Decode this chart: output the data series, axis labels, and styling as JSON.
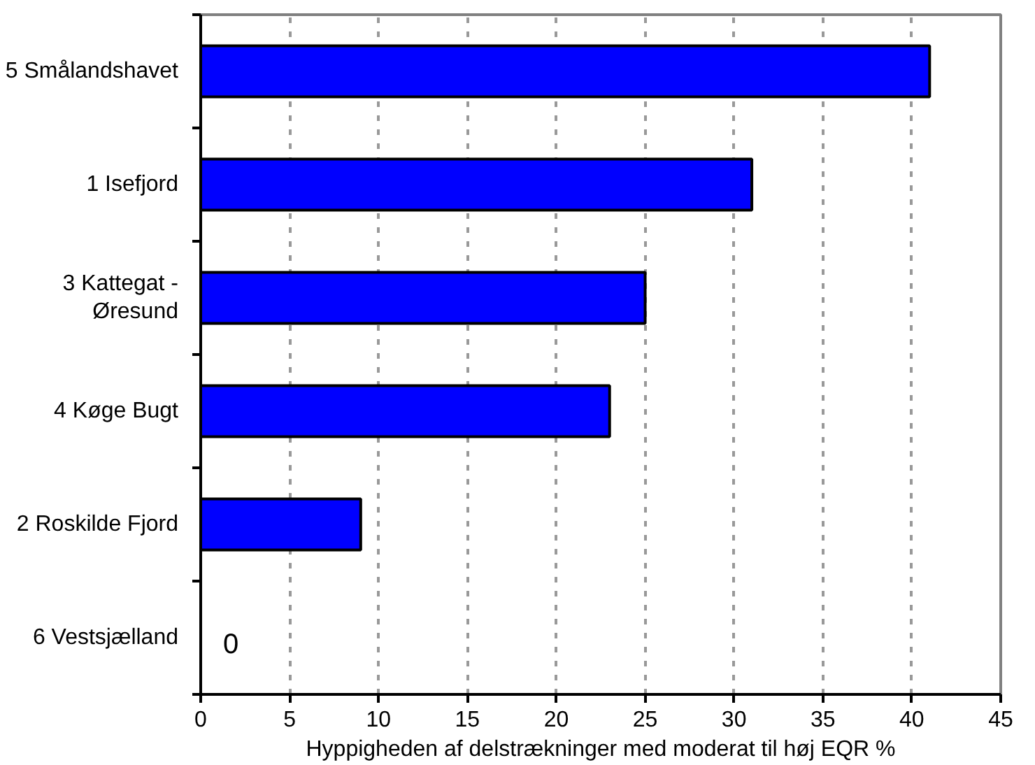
{
  "chart_data": {
    "type": "bar",
    "orientation": "horizontal",
    "categories": [
      "5 Smålandshavet",
      "1 Isefjord",
      "3 Kattegat -\nØresund",
      "4 Køge Bugt",
      "2 Roskilde Fjord",
      "6 Vestsjælland"
    ],
    "values": [
      41,
      31,
      25,
      23,
      9,
      0
    ],
    "value_labels": [
      null,
      null,
      null,
      null,
      null,
      "0"
    ],
    "color": "#0000ff",
    "xlabel": "Hyppigheden af delstrækninger med moderat til høj EQR %",
    "xlim": [
      0,
      45
    ],
    "xticks": [
      0,
      5,
      10,
      15,
      20,
      25,
      30,
      35,
      40,
      45
    ],
    "grid": "x"
  }
}
